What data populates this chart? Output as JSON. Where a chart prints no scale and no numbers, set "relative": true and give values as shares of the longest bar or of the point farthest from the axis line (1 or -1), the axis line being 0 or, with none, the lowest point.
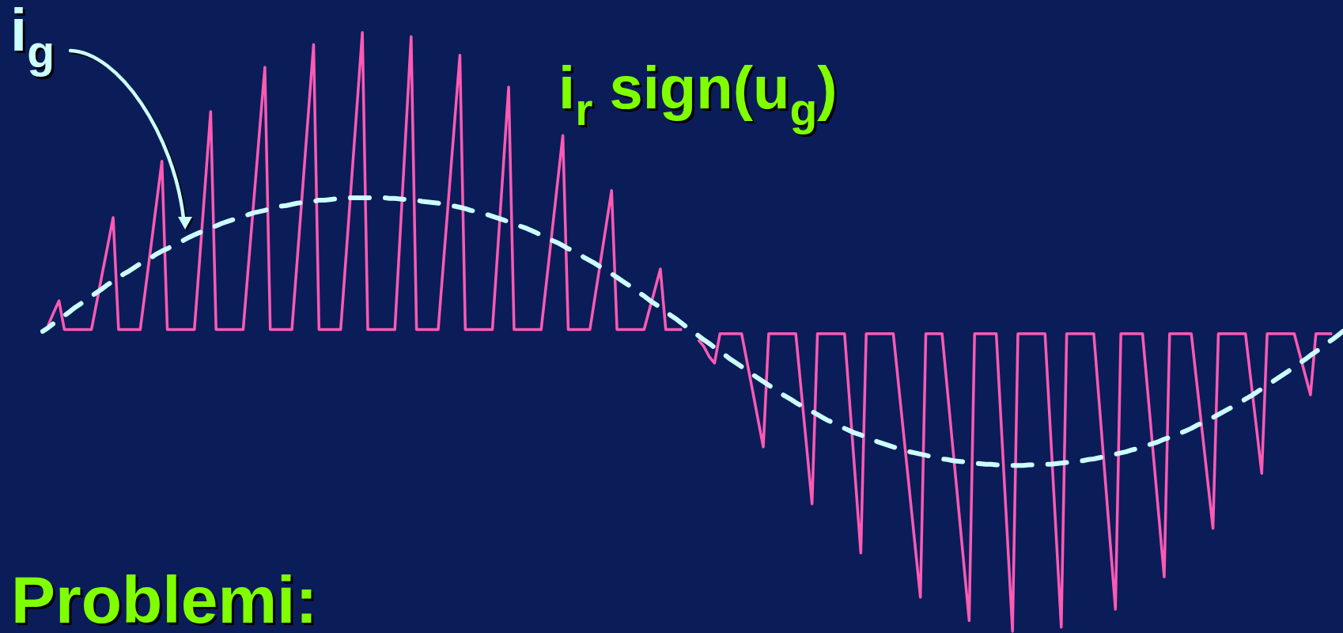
{
  "chart_data": {
    "type": "line",
    "relative": true,
    "categories": [
      null,
      null,
      null,
      null,
      null,
      null,
      null,
      null,
      null,
      null,
      null,
      null,
      null,
      null,
      null,
      null,
      null,
      null,
      null,
      null,
      null,
      null,
      null,
      null,
      null,
      null,
      null,
      null,
      null,
      null,
      null,
      null,
      null,
      null,
      null,
      null,
      null,
      null,
      null,
      null,
      null,
      null,
      null,
      null,
      null,
      null,
      null,
      null,
      null,
      null,
      null,
      null,
      null,
      null,
      null,
      null,
      null,
      null,
      null,
      null,
      null,
      null,
      null,
      null,
      null,
      null,
      null,
      null,
      null,
      null,
      null,
      null,
      null,
      null,
      null,
      null,
      null,
      null,
      null,
      null,
      null,
      null,
      null,
      null,
      null,
      null,
      null,
      null,
      null,
      null,
      null,
      null,
      null,
      null,
      null,
      null,
      null,
      null,
      null,
      null,
      null,
      null,
      null,
      null,
      null,
      null,
      null,
      null,
      null,
      null,
      null,
      null,
      null,
      null,
      null,
      null,
      null,
      null,
      null,
      null,
      null,
      null,
      null,
      null,
      null,
      null,
      null,
      null,
      null,
      null,
      null,
      null,
      null,
      null,
      null,
      null,
      null,
      null,
      null,
      null,
      null,
      null,
      null,
      null,
      null,
      null,
      null,
      null,
      null,
      null,
      null,
      null,
      null,
      null,
      null,
      null,
      null,
      null,
      null,
      null,
      null,
      null,
      null,
      null,
      null,
      null,
      null,
      null,
      null,
      null,
      null,
      null,
      null,
      null,
      null,
      null,
      null,
      null,
      null,
      null,
      null,
      null,
      null,
      null,
      null,
      null,
      null,
      null,
      null,
      null,
      null,
      null,
      null,
      null,
      null,
      null,
      null,
      null,
      null,
      null,
      null,
      null,
      null,
      null,
      null,
      null,
      null,
      null,
      null,
      null,
      null,
      null,
      null,
      null,
      null,
      null,
      null,
      null,
      null,
      null,
      null,
      null,
      null,
      null,
      null,
      null,
      null,
      null,
      null,
      null,
      null,
      null,
      null,
      null,
      null,
      null,
      null,
      null,
      null,
      null,
      null
    ],
    "series": [
      {
        "name": "i$_{g}$",
        "color": "#ccffff",
        "line_style": "dashed",
        "values": [
          0.501,
          0.507,
          0.514,
          0.521,
          0.527,
          0.534,
          0.541,
          0.547,
          0.553,
          0.56,
          0.566,
          0.572,
          0.579,
          0.585,
          0.591,
          0.597,
          0.602,
          0.608,
          0.614,
          0.619,
          0.624,
          0.63,
          0.635,
          0.639,
          0.644,
          0.649,
          0.653,
          0.658,
          0.662,
          0.666,
          0.67,
          0.674,
          0.677,
          0.681,
          0.684,
          0.687,
          0.69,
          0.693,
          0.696,
          0.699,
          0.701,
          0.703,
          0.706,
          0.708,
          0.71,
          0.711,
          0.713,
          0.715,
          0.716,
          0.717,
          0.718,
          0.72,
          0.72,
          0.721,
          0.722,
          0.723,
          0.723,
          0.724,
          0.724,
          0.724,
          0.724,
          0.724,
          0.724,
          0.724,
          0.723,
          0.723,
          0.722,
          0.721,
          0.72,
          0.72,
          0.718,
          0.717,
          0.716,
          0.715,
          0.713,
          0.711,
          0.71,
          0.708,
          0.706,
          0.703,
          0.701,
          0.699,
          0.696,
          0.693,
          0.69,
          0.687,
          0.684,
          0.681,
          0.677,
          0.674,
          0.67,
          0.666,
          0.662,
          0.658,
          0.653,
          0.649,
          0.644,
          0.639,
          0.635,
          0.63,
          0.624,
          0.619,
          0.614,
          0.608,
          0.602,
          0.597,
          0.591,
          0.585,
          0.579,
          0.572,
          0.566,
          0.56,
          0.553,
          0.547,
          0.541,
          0.534,
          0.527,
          0.521,
          0.514,
          0.507,
          0.501,
          0.494,
          0.487,
          0.481,
          0.474,
          0.467,
          0.461,
          0.454,
          0.448,
          0.442,
          0.435,
          0.429,
          0.423,
          0.417,
          0.411,
          0.405,
          0.399,
          0.393,
          0.388,
          0.382,
          0.377,
          0.372,
          0.367,
          0.362,
          0.357,
          0.352,
          0.348,
          0.344,
          0.339,
          0.335,
          0.331,
          0.328,
          0.324,
          0.321,
          0.317,
          0.314,
          0.311,
          0.308,
          0.305,
          0.303,
          0.3,
          0.298,
          0.296,
          0.294,
          0.292,
          0.29,
          0.288,
          0.287,
          0.285,
          0.284,
          0.283,
          0.282,
          0.281,
          0.28,
          0.279,
          0.279,
          0.278,
          0.278,
          0.278,
          0.277,
          0.277,
          0.277,
          0.278,
          0.278,
          0.278,
          0.279,
          0.279,
          0.28,
          0.281,
          0.282,
          0.283,
          0.284,
          0.285,
          0.287,
          0.288,
          0.29,
          0.292,
          0.294,
          0.296,
          0.298,
          0.3,
          0.303,
          0.305,
          0.308,
          0.311,
          0.314,
          0.317,
          0.321,
          0.324,
          0.328,
          0.331,
          0.335,
          0.339,
          0.344,
          0.348,
          0.352,
          0.357,
          0.362,
          0.367,
          0.372,
          0.377,
          0.382,
          0.388,
          0.393,
          0.399,
          0.405,
          0.411,
          0.417,
          0.423,
          0.429,
          0.435,
          0.442,
          0.448,
          0.454,
          0.461,
          0.467,
          0.474,
          0.481,
          0.487,
          0.494,
          0.501
        ]
      },
      {
        "name": "i$_{r}$ sign(u$_{g}$)",
        "color": "#ff5ab4",
        "values": [
          null,
          0.511,
          0.532,
          0.552,
          0.504,
          0.504,
          0.504,
          0.504,
          0.504,
          0.504,
          0.551,
          0.598,
          0.644,
          0.691,
          0.504,
          0.504,
          0.504,
          0.504,
          0.504,
          0.574,
          0.644,
          0.715,
          0.785,
          0.504,
          0.504,
          0.504,
          0.504,
          0.504,
          0.504,
          0.625,
          0.747,
          0.868,
          0.504,
          0.504,
          0.504,
          0.504,
          0.504,
          0.504,
          0.614,
          0.723,
          0.833,
          0.942,
          0.504,
          0.504,
          0.504,
          0.504,
          0.504,
          0.623,
          0.742,
          0.861,
          0.98,
          0.504,
          0.504,
          0.504,
          0.504,
          0.504,
          0.628,
          0.752,
          0.876,
          1,
          0.504,
          0.504,
          0.504,
          0.504,
          0.504,
          0.504,
          0.667,
          0.83,
          0.993,
          0.504,
          0.504,
          0.504,
          0.504,
          0.504,
          0.619,
          0.733,
          0.848,
          0.962,
          0.504,
          0.504,
          0.504,
          0.504,
          0.504,
          0.504,
          0.639,
          0.774,
          0.909,
          0.504,
          0.504,
          0.504,
          0.504,
          0.504,
          0.504,
          0.585,
          0.666,
          0.747,
          0.828,
          0.504,
          0.504,
          0.504,
          0.504,
          0.504,
          0.562,
          0.62,
          0.678,
          0.736,
          0.504,
          0.504,
          0.504,
          0.504,
          0.504,
          0.504,
          0.538,
          0.571,
          0.605,
          0.504,
          0.504,
          0.504,
          0.504,
          null,
          null,
          0.487,
          0.476,
          0.459,
          0.448,
          0.497,
          0.497,
          0.497,
          0.497,
          0.497,
          0.45,
          0.403,
          0.355,
          0.308,
          0.497,
          0.497,
          0.497,
          0.497,
          0.497,
          0.497,
          0.402,
          0.308,
          0.213,
          0.497,
          0.497,
          0.497,
          0.497,
          0.497,
          0.497,
          0.375,
          0.253,
          0.131,
          0.497,
          0.497,
          0.497,
          0.497,
          0.497,
          0.497,
          0.409,
          0.321,
          0.233,
          0.145,
          0.057,
          0.497,
          0.497,
          0.497,
          0.497,
          0.401,
          0.305,
          0.21,
          0.114,
          0.018,
          0.497,
          0.497,
          0.497,
          0.497,
          0.497,
          0.331,
          0.166,
          0,
          0.497,
          0.497,
          0.497,
          0.497,
          0.497,
          0.497,
          0.334,
          0.17,
          0.007,
          0.497,
          0.497,
          0.497,
          0.497,
          0.497,
          0.497,
          0.382,
          0.267,
          0.152,
          0.037,
          0.497,
          0.497,
          0.497,
          0.497,
          0.497,
          0.396,
          0.294,
          0.193,
          0.091,
          0.497,
          0.497,
          0.497,
          0.497,
          0.497,
          0.416,
          0.335,
          0.253,
          0.172,
          0.497,
          0.497,
          0.497,
          0.497,
          0.497,
          0.497,
          0.419,
          0.342,
          0.264,
          0.497,
          0.497,
          0.497,
          0.497,
          0.497,
          0.497,
          0.463,
          0.429,
          0.395,
          0.497,
          0.497,
          0.497,
          0.497,
          null,
          null
        ]
      }
    ],
    "annotations": [
      "Problemi:"
    ]
  }
}
